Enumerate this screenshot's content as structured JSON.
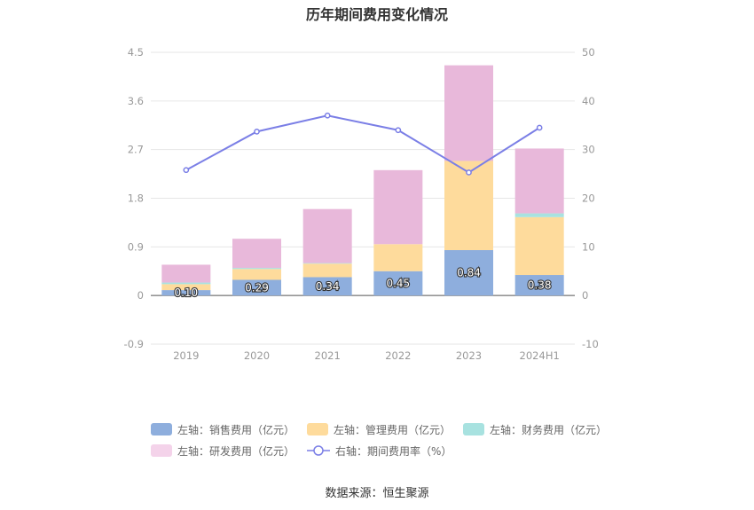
{
  "chart_data": {
    "type": "bar",
    "title": "历年期间费用变化情况",
    "categories": [
      "2019",
      "2020",
      "2021",
      "2022",
      "2023",
      "2024H1"
    ],
    "left_axis": {
      "ticks": [
        "4.5",
        "3.6",
        "2.7",
        "1.8",
        "0.9",
        "0",
        "-0.9"
      ],
      "ylim": [
        -0.9,
        4.5
      ]
    },
    "right_axis": {
      "ticks": [
        "50",
        "40",
        "30",
        "20",
        "10",
        "0",
        "-10"
      ],
      "ylim": [
        -10,
        50
      ]
    },
    "series": [
      {
        "name": "左轴：销售费用（亿元）",
        "type": "bar",
        "stack": "left",
        "color": "#8eaedd",
        "values": [
          0.1,
          0.29,
          0.34,
          0.45,
          0.84,
          0.38
        ],
        "labels": [
          "0.10",
          "0.29",
          "0.34",
          "0.45",
          "0.84",
          "0.38"
        ]
      },
      {
        "name": "左轴：管理费用（亿元）",
        "type": "bar",
        "stack": "left",
        "color": "#fedb9c",
        "values": [
          0.11,
          0.2,
          0.25,
          0.5,
          1.65,
          1.07
        ]
      },
      {
        "name": "左轴：财务费用（亿元）",
        "type": "bar",
        "stack": "left",
        "color": "#a8e2e0",
        "values": [
          0.03,
          0.02,
          0.01,
          0.0,
          0.0,
          0.07
        ]
      },
      {
        "name": "左轴：研发费用（亿元）",
        "type": "bar",
        "stack": "left",
        "color": "#e8b8da",
        "values": [
          0.33,
          0.54,
          1.0,
          1.37,
          1.77,
          1.2
        ]
      },
      {
        "name": "右轴：期间费用率（%）",
        "type": "line",
        "axis": "right",
        "color": "#7b7fe6",
        "values": [
          25.8,
          33.7,
          37.0,
          34.0,
          25.3,
          34.5
        ]
      }
    ],
    "grid": true,
    "legend_position": "bottom"
  },
  "source": "数据来源：恒生聚源"
}
